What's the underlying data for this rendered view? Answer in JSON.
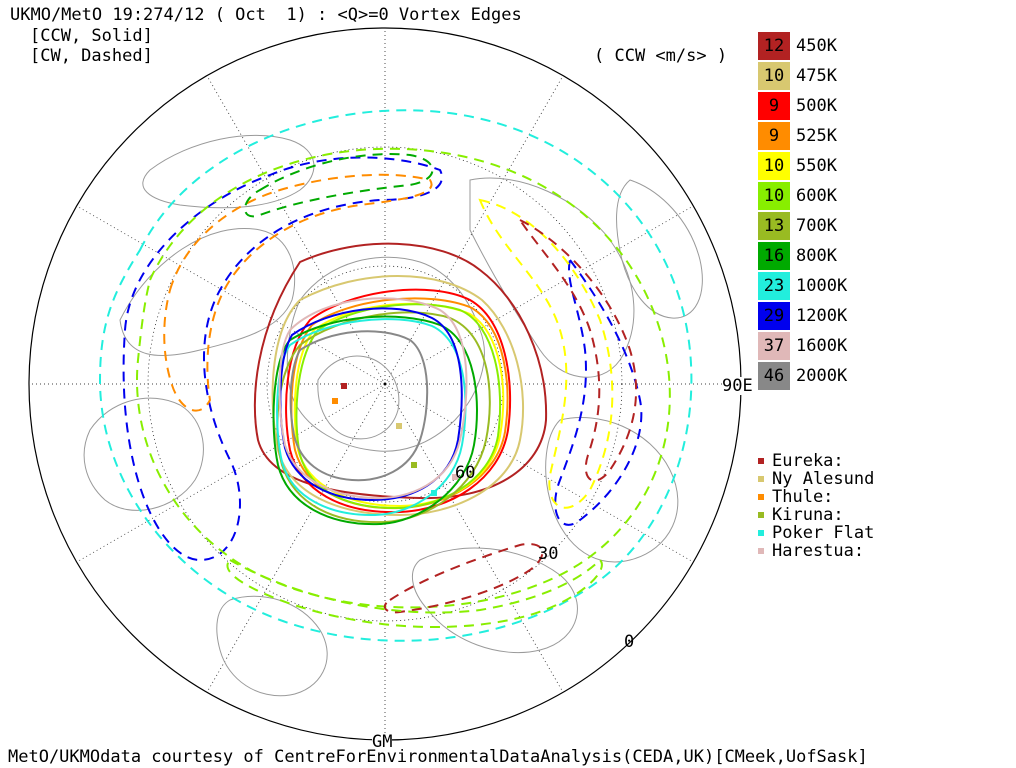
{
  "header": {
    "title": "UKMO/MetO 19:274/12 ( Oct  1) : <Q>=0 Vortex Edges",
    "subtitle1": "[CCW, Solid]",
    "subtitle2": "[CW, Dashed]",
    "units": "( CCW <m/s> )"
  },
  "footer": {
    "credit": "MetO/UKMOdata courtesy of CentreForEnvironmentalDataAnalysis(CEDA,UK)[CMeek,UofSask]"
  },
  "map_labels": {
    "east": "90E",
    "gm": "GM",
    "lat60": "60",
    "lat30": "30",
    "lat0": "0"
  },
  "legend": [
    {
      "value": "12",
      "level": "450K",
      "color": "#b22222",
      "text_color": "#000000"
    },
    {
      "value": "10",
      "level": "475K",
      "color": "#d8c870",
      "text_color": "#000000"
    },
    {
      "value": "9",
      "level": "500K",
      "color": "#ff0000",
      "text_color": "#000000"
    },
    {
      "value": "9",
      "level": "525K",
      "color": "#ff8c00",
      "text_color": "#000000"
    },
    {
      "value": "10",
      "level": "550K",
      "color": "#ffff00",
      "text_color": "#000000"
    },
    {
      "value": "10",
      "level": "600K",
      "color": "#88ee00",
      "text_color": "#000000"
    },
    {
      "value": "13",
      "level": "700K",
      "color": "#99bb22",
      "text_color": "#000000"
    },
    {
      "value": "16",
      "level": "800K",
      "color": "#00aa00",
      "text_color": "#000000"
    },
    {
      "value": "23",
      "level": "1000K",
      "color": "#22eedd",
      "text_color": "#000000"
    },
    {
      "value": "29",
      "level": "1200K",
      "color": "#0000ee",
      "text_color": "#000000"
    },
    {
      "value": "37",
      "level": "1600K",
      "color": "#e0b8b8",
      "text_color": "#000000"
    },
    {
      "value": "46",
      "level": "2000K",
      "color": "#888888",
      "text_color": "#000000"
    }
  ],
  "stations": [
    {
      "name": "Eureka:",
      "color": "#b22222"
    },
    {
      "name": "Ny Alesund",
      "color": "#d8c870"
    },
    {
      "name": "Thule:",
      "color": "#ff8c00"
    },
    {
      "name": "Kiruna:",
      "color": "#99bb22"
    },
    {
      "name": "Poker Flat",
      "color": "#22eedd"
    },
    {
      "name": "Harestua:",
      "color": "#e0b8b8"
    }
  ],
  "vortex_edges": [
    {
      "level": "450K",
      "style": "solid",
      "color": "#b22222"
    },
    {
      "level": "475K",
      "style": "solid",
      "color": "#d8c870"
    },
    {
      "level": "500K",
      "style": "solid",
      "color": "#ff0000"
    },
    {
      "level": "525K",
      "style": "solid",
      "color": "#ff8c00"
    },
    {
      "level": "550K",
      "style": "solid",
      "color": "#ffff00"
    },
    {
      "level": "600K",
      "style": "solid",
      "color": "#88ee00"
    },
    {
      "level": "700K",
      "style": "solid",
      "color": "#99bb22"
    },
    {
      "level": "800K",
      "style": "solid",
      "color": "#00aa00"
    },
    {
      "level": "1000K",
      "style": "solid",
      "color": "#22eedd"
    },
    {
      "level": "1200K",
      "style": "solid",
      "color": "#0000ee"
    },
    {
      "level": "1600K",
      "style": "solid",
      "color": "#e0b8b8"
    },
    {
      "level": "2000K",
      "style": "solid",
      "color": "#888888"
    },
    {
      "level": "1000K",
      "style": "dashed",
      "color": "#22eedd"
    },
    {
      "level": "1200K",
      "style": "dashed",
      "color": "#0000ee"
    },
    {
      "level": "600K",
      "style": "dashed",
      "color": "#88ee00"
    },
    {
      "level": "550K",
      "style": "dashed",
      "color": "#ffff00"
    },
    {
      "level": "525K",
      "style": "dashed",
      "color": "#ff8c00"
    },
    {
      "level": "450K",
      "style": "dashed",
      "color": "#b22222"
    },
    {
      "level": "800K",
      "style": "dashed",
      "color": "#00aa00"
    }
  ]
}
